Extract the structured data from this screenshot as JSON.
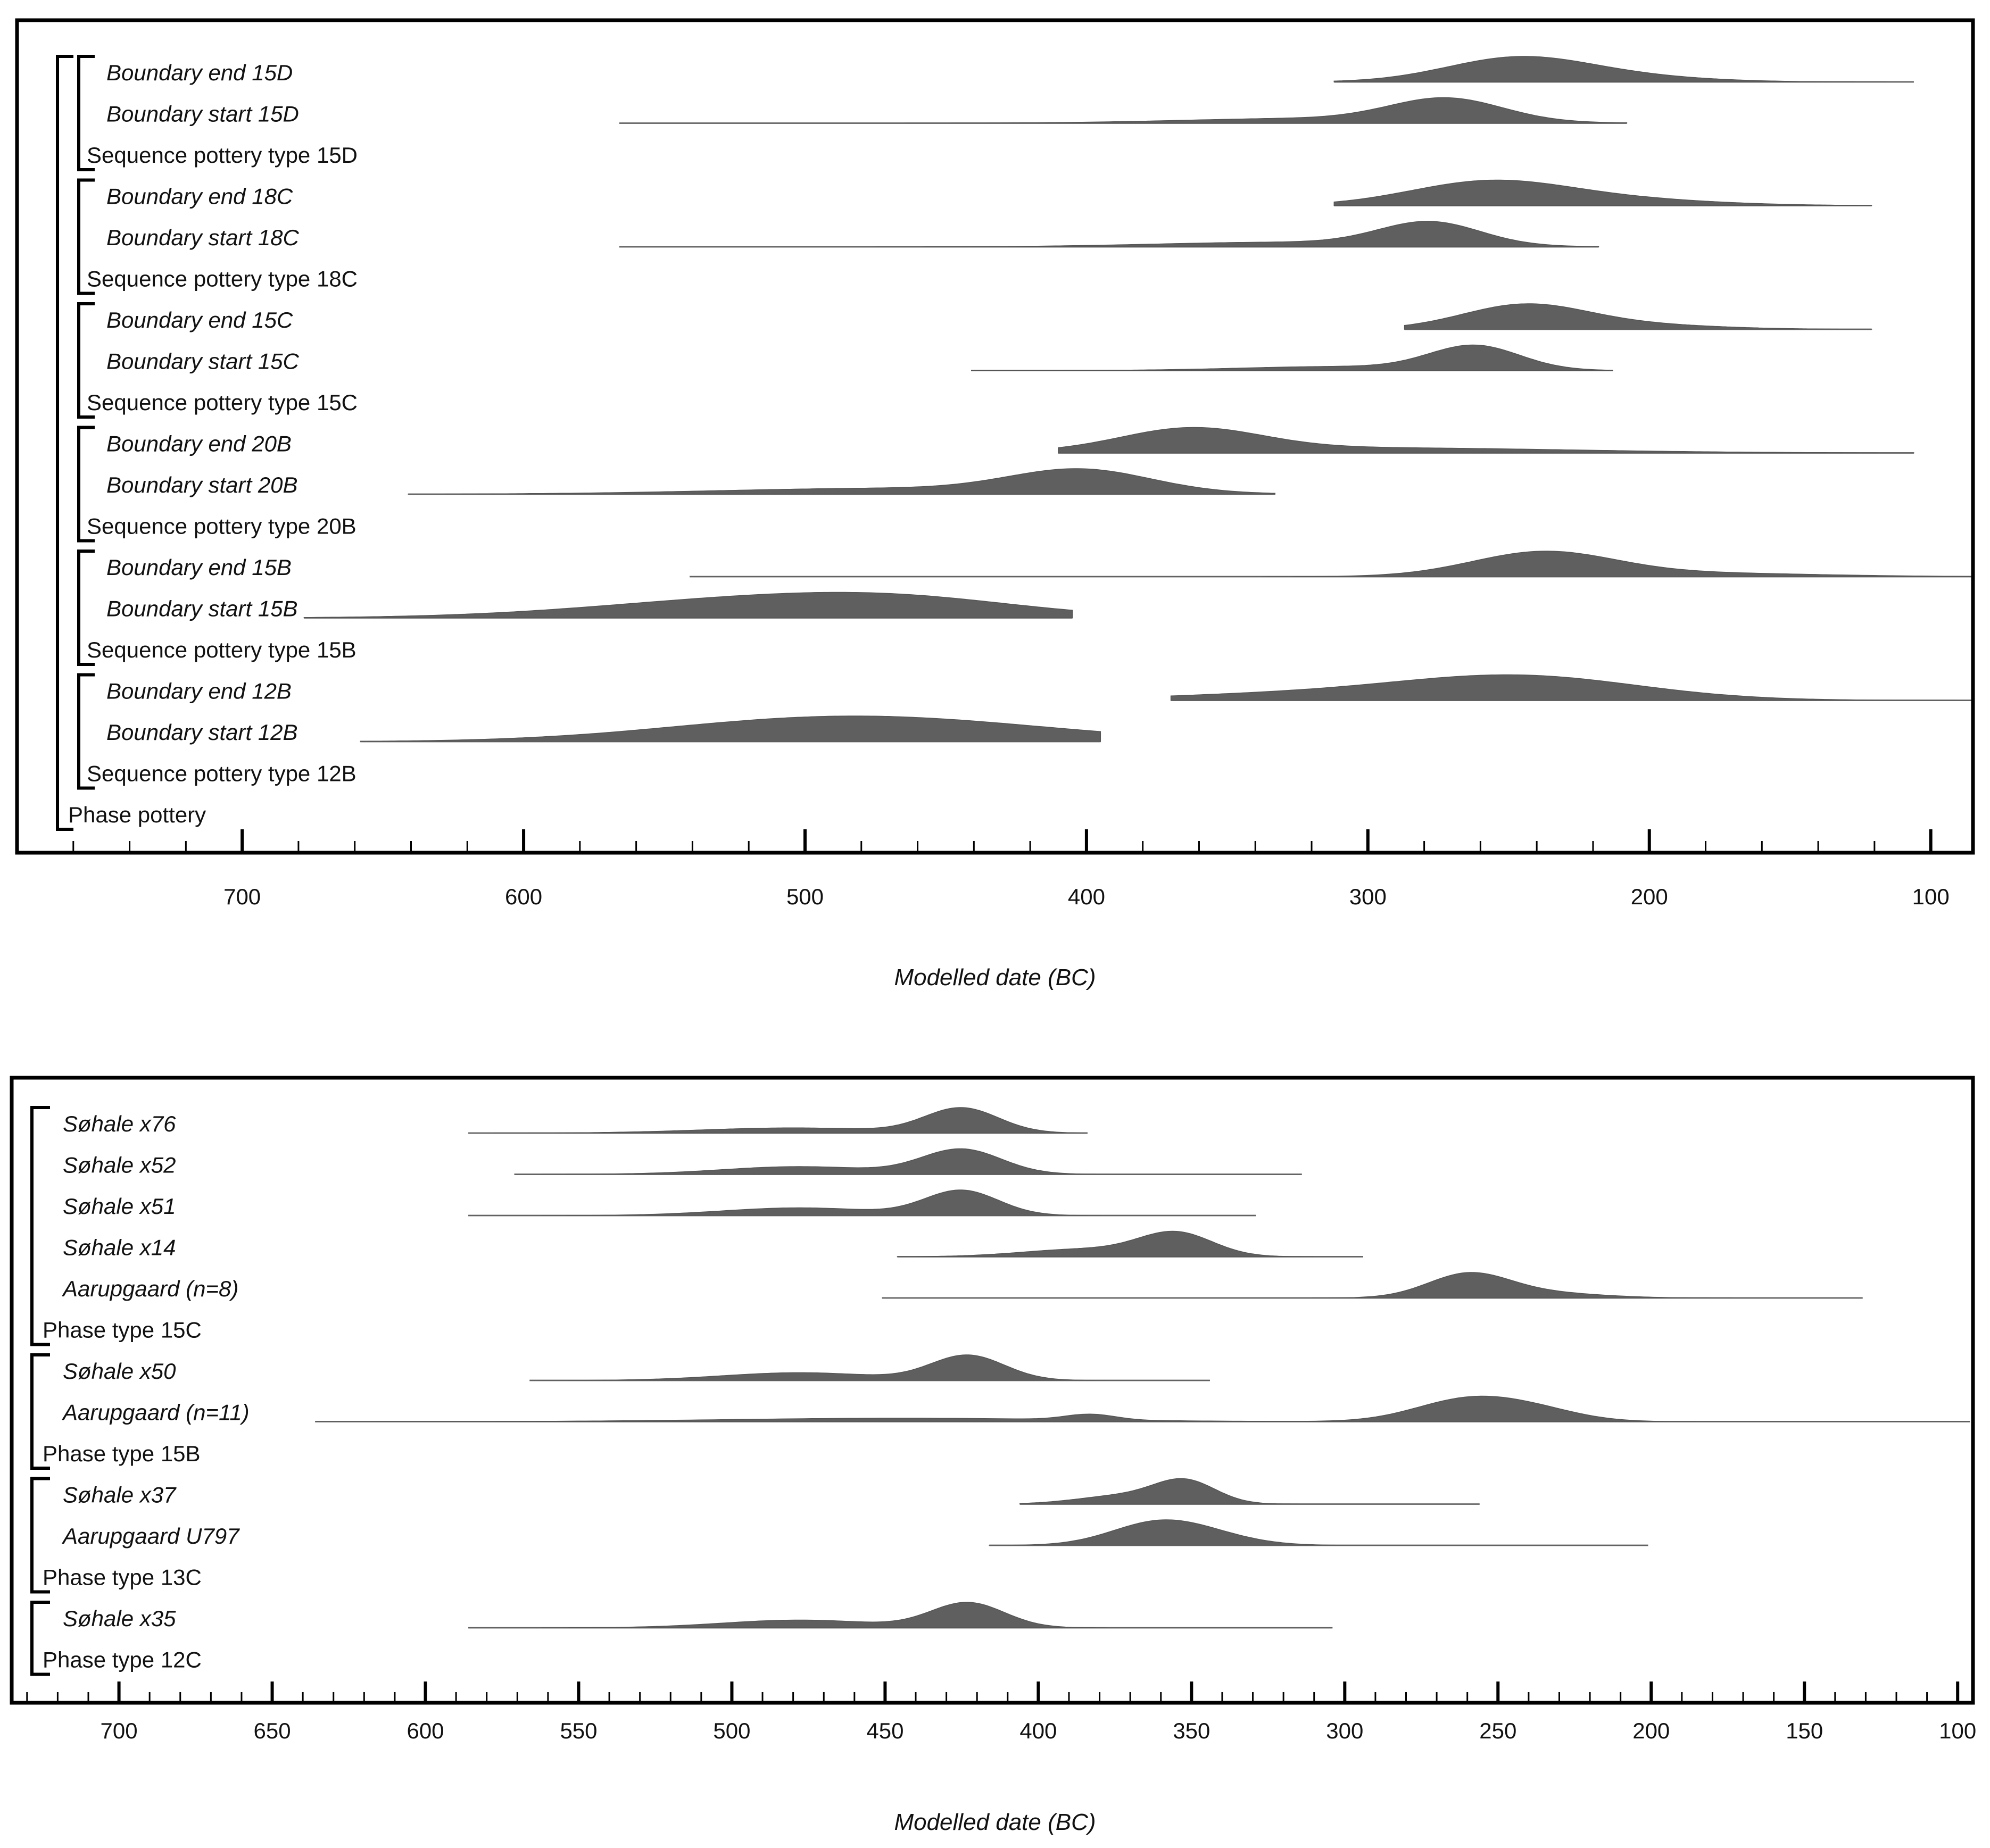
{
  "chart_data": [
    {
      "type": "density",
      "xlabel": "Modelled date (BC)",
      "xlim": [
        780,
        85
      ],
      "x_ticks": [
        700,
        600,
        500,
        400,
        300,
        200,
        100
      ],
      "minor_tick_step": 20,
      "rows": [
        {
          "label": "Boundary end 15D",
          "kind": "boundary",
          "range": [
            312,
            106
          ],
          "peaks": [
            {
              "x": 248,
              "w": 25,
              "h": 0.9
            },
            {
              "x": 215,
              "w": 30,
              "h": 0.25
            }
          ]
        },
        {
          "label": "Boundary start 15D",
          "kind": "boundary",
          "range": [
            566,
            208
          ],
          "peaks": [
            {
              "x": 272,
              "w": 20,
              "h": 0.95
            },
            {
              "x": 320,
              "w": 45,
              "h": 0.2
            }
          ]
        },
        {
          "label": "Sequence pottery type 15D",
          "kind": "group",
          "level": 2,
          "span": [
            0,
            1
          ]
        },
        {
          "label": "Boundary end 18C",
          "kind": "boundary",
          "range": [
            312,
            121
          ],
          "peaks": [
            {
              "x": 258,
              "w": 28,
              "h": 0.85
            },
            {
              "x": 215,
              "w": 35,
              "h": 0.25
            }
          ]
        },
        {
          "label": "Boundary start 18C",
          "kind": "boundary",
          "range": [
            566,
            218
          ],
          "peaks": [
            {
              "x": 278,
              "w": 18,
              "h": 0.9
            },
            {
              "x": 330,
              "w": 45,
              "h": 0.18
            }
          ]
        },
        {
          "label": "Sequence pottery type 18C",
          "kind": "group",
          "level": 2,
          "span": [
            3,
            4
          ]
        },
        {
          "label": "Boundary end 15C",
          "kind": "boundary",
          "range": [
            287,
            121
          ],
          "peaks": [
            {
              "x": 245,
              "w": 22,
              "h": 0.9
            },
            {
              "x": 210,
              "w": 30,
              "h": 0.2
            }
          ]
        },
        {
          "label": "Boundary start 15C",
          "kind": "boundary",
          "range": [
            441,
            213
          ],
          "peaks": [
            {
              "x": 262,
              "w": 16,
              "h": 0.9
            },
            {
              "x": 310,
              "w": 35,
              "h": 0.15
            }
          ]
        },
        {
          "label": "Sequence pottery type 15C",
          "kind": "group",
          "level": 2,
          "span": [
            6,
            7
          ]
        },
        {
          "label": "Boundary end 20B",
          "kind": "boundary",
          "range": [
            410,
            106
          ],
          "peaks": [
            {
              "x": 363,
              "w": 25,
              "h": 0.85
            },
            {
              "x": 300,
              "w": 70,
              "h": 0.2
            }
          ]
        },
        {
          "label": "Boundary start 20B",
          "kind": "boundary",
          "range": [
            641,
            333
          ],
          "peaks": [
            {
              "x": 402,
              "w": 25,
              "h": 0.95
            },
            {
              "x": 470,
              "w": 60,
              "h": 0.25
            }
          ]
        },
        {
          "label": "Sequence pottery type 20B",
          "kind": "group",
          "level": 2,
          "span": [
            9,
            10
          ]
        },
        {
          "label": "Boundary end 15B",
          "kind": "boundary",
          "range": [
            541,
            85
          ],
          "peaks": [
            {
              "x": 238,
              "w": 25,
              "h": 0.9
            },
            {
              "x": 190,
              "w": 45,
              "h": 0.15
            }
          ]
        },
        {
          "label": "Boundary start 15B",
          "kind": "boundary",
          "range": [
            678,
            405
          ],
          "peaks": [
            {
              "x": 510,
              "w": 60,
              "h": 0.85
            },
            {
              "x": 460,
              "w": 40,
              "h": 0.35
            }
          ]
        },
        {
          "label": "Sequence pottery type 15B",
          "kind": "group",
          "level": 2,
          "span": [
            12,
            13
          ]
        },
        {
          "label": "Boundary end 12B",
          "kind": "boundary",
          "range": [
            370,
            85
          ],
          "peaks": [
            {
              "x": 245,
              "w": 42,
              "h": 0.85
            },
            {
              "x": 320,
              "w": 50,
              "h": 0.25
            }
          ]
        },
        {
          "label": "Boundary start 12B",
          "kind": "boundary",
          "range": [
            658,
            395
          ],
          "peaks": [
            {
              "x": 470,
              "w": 60,
              "h": 0.85
            },
            {
              "x": 520,
              "w": 50,
              "h": 0.25
            }
          ]
        },
        {
          "label": "Sequence pottery type 12B",
          "kind": "group",
          "level": 2,
          "span": [
            15,
            16
          ]
        },
        {
          "label": "Phase pottery",
          "kind": "group",
          "level": 1,
          "span": [
            0,
            17
          ]
        }
      ]
    },
    {
      "type": "density",
      "xlabel": "Modelled date (BC)",
      "xlim": [
        735,
        95
      ],
      "x_ticks": [
        700,
        650,
        600,
        550,
        500,
        450,
        400,
        350,
        300,
        250,
        200,
        150,
        100
      ],
      "minor_tick_step": 10,
      "rows": [
        {
          "label": "Søhale x76",
          "kind": "date",
          "range": [
            586,
            384
          ],
          "peaks": [
            {
              "x": 425,
              "w": 12,
              "h": 0.95
            },
            {
              "x": 480,
              "w": 30,
              "h": 0.2
            }
          ]
        },
        {
          "label": "Søhale x52",
          "kind": "date",
          "range": [
            571,
            314
          ],
          "peaks": [
            {
              "x": 425,
              "w": 13,
              "h": 0.9
            },
            {
              "x": 478,
              "w": 25,
              "h": 0.28
            }
          ]
        },
        {
          "label": "Søhale x51",
          "kind": "date",
          "range": [
            586,
            329
          ],
          "peaks": [
            {
              "x": 425,
              "w": 12,
              "h": 0.9
            },
            {
              "x": 478,
              "w": 25,
              "h": 0.28
            }
          ]
        },
        {
          "label": "Søhale x14",
          "kind": "date",
          "range": [
            446,
            294
          ],
          "peaks": [
            {
              "x": 355,
              "w": 12,
              "h": 0.9
            },
            {
              "x": 385,
              "w": 20,
              "h": 0.3
            }
          ]
        },
        {
          "label": "Aarupgaard (n=8)",
          "kind": "date",
          "range": [
            451,
            131
          ],
          "peaks": [
            {
              "x": 260,
              "w": 13,
              "h": 0.9
            },
            {
              "x": 240,
              "w": 20,
              "h": 0.25
            }
          ]
        },
        {
          "label": "Phase type 15C",
          "kind": "group",
          "level": 1,
          "span": [
            0,
            5
          ]
        },
        {
          "label": "Søhale x50",
          "kind": "date",
          "range": [
            566,
            344
          ],
          "peaks": [
            {
              "x": 423,
              "w": 12,
              "h": 0.9
            },
            {
              "x": 478,
              "w": 25,
              "h": 0.28
            }
          ]
        },
        {
          "label": "Aarupgaard (n=11)",
          "kind": "date",
          "range": [
            636,
            96
          ],
          "peaks": [
            {
              "x": 260,
              "w": 17,
              "h": 0.95
            },
            {
              "x": 237,
              "w": 15,
              "h": 0.4
            },
            {
              "x": 383,
              "w": 8,
              "h": 0.25
            },
            {
              "x": 445,
              "w": 55,
              "h": 0.15
            }
          ]
        },
        {
          "label": "Phase type 15B",
          "kind": "group",
          "level": 1,
          "span": [
            6,
            8
          ]
        },
        {
          "label": "Søhale x37",
          "kind": "date",
          "range": [
            406,
            256
          ],
          "peaks": [
            {
              "x": 352,
              "w": 10,
              "h": 0.9
            },
            {
              "x": 372,
              "w": 15,
              "h": 0.35
            }
          ]
        },
        {
          "label": "Aarupgaard U797",
          "kind": "date",
          "range": [
            416,
            201
          ],
          "peaks": [
            {
              "x": 362,
              "w": 15,
              "h": 0.85
            },
            {
              "x": 345,
              "w": 15,
              "h": 0.35
            }
          ]
        },
        {
          "label": "Phase type 13C",
          "kind": "group",
          "level": 1,
          "span": [
            9,
            11
          ]
        },
        {
          "label": "Søhale x35",
          "kind": "date",
          "range": [
            586,
            304
          ],
          "peaks": [
            {
              "x": 423,
              "w": 12,
              "h": 0.9
            },
            {
              "x": 478,
              "w": 25,
              "h": 0.28
            }
          ]
        },
        {
          "label": "Phase type 12C",
          "kind": "group",
          "level": 1,
          "span": [
            12,
            13
          ]
        }
      ]
    }
  ]
}
